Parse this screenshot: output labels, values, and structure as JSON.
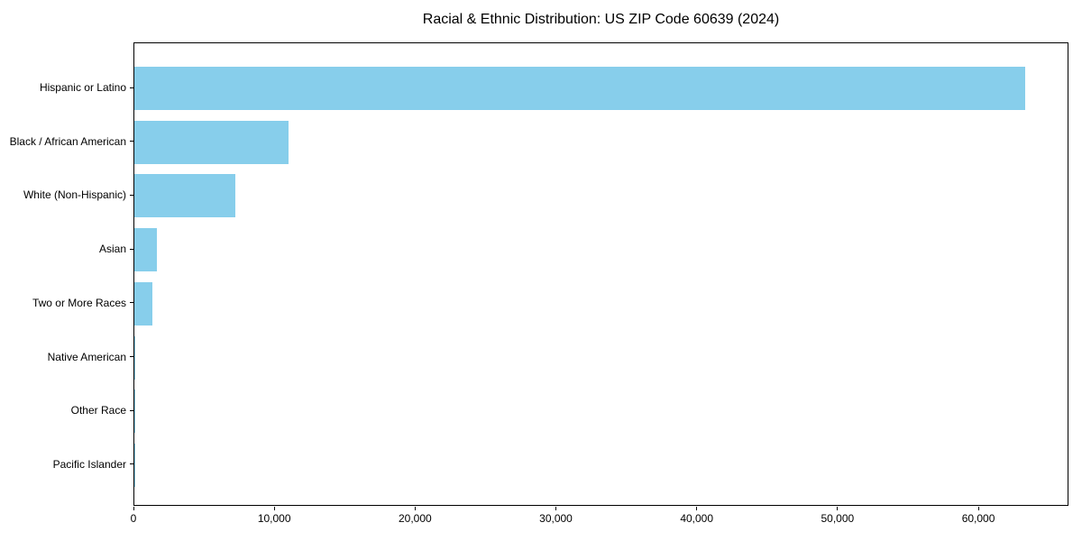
{
  "chart_data": {
    "type": "bar",
    "orientation": "horizontal",
    "title": "Racial & Ethnic Distribution: US ZIP Code 60639 (2024)",
    "categories": [
      "Hispanic or Latino",
      "Black / African American",
      "White (Non-Hispanic)",
      "Asian",
      "Two or More Races",
      "Native American",
      "Other Race",
      "Pacific Islander"
    ],
    "values": [
      63250,
      10950,
      7170,
      1600,
      1280,
      60,
      40,
      20
    ],
    "xlabel": "",
    "ylabel": "",
    "xlim": [
      0,
      66400
    ],
    "xticks": [
      0,
      10000,
      20000,
      30000,
      40000,
      50000,
      60000
    ],
    "xtick_labels": [
      "0",
      "10,000",
      "20,000",
      "30,000",
      "40,000",
      "50,000",
      "60,000"
    ],
    "bar_color": "#87CEEB",
    "axis_color": "#000000",
    "background_color": "#ffffff",
    "grid": false,
    "legend": null
  }
}
